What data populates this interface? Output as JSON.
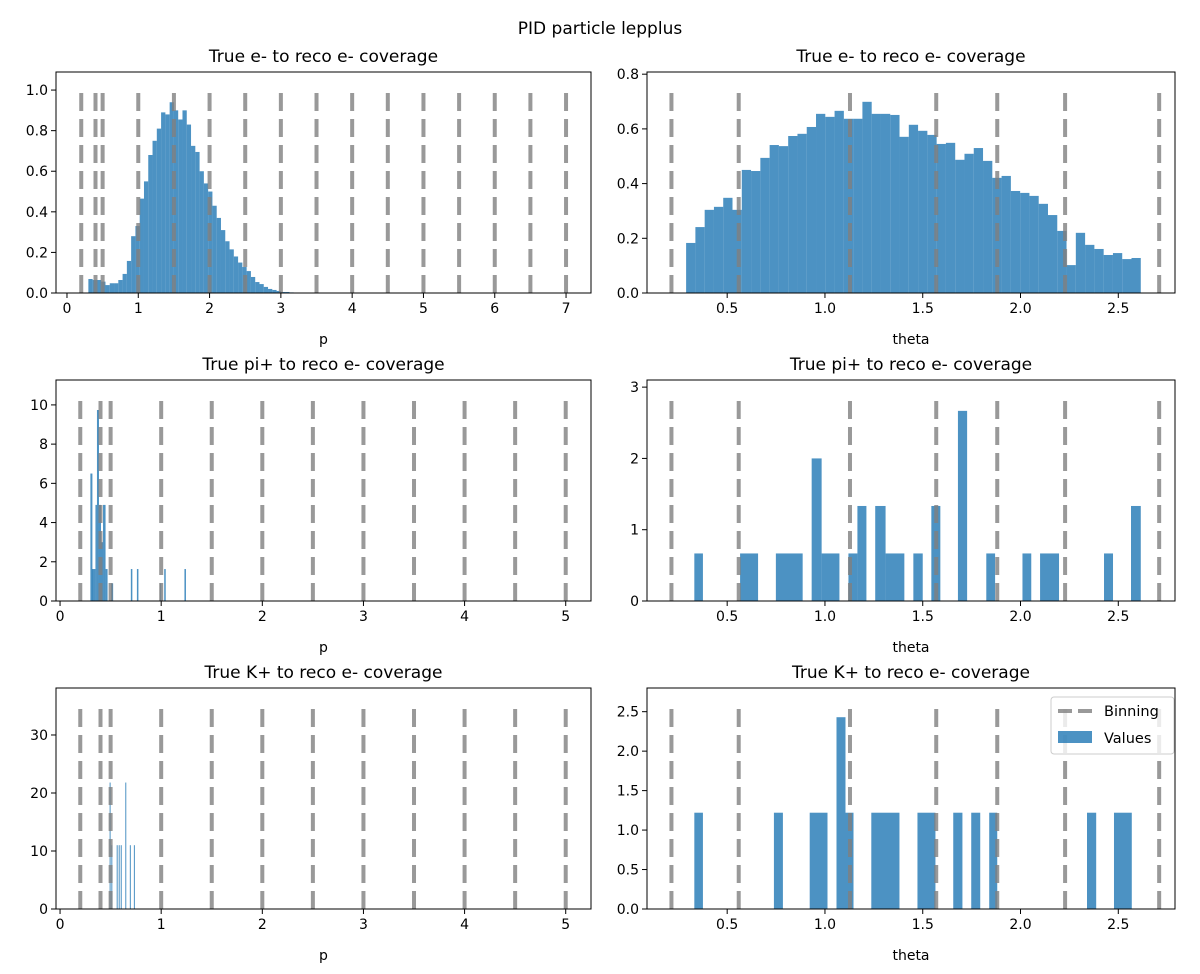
{
  "suptitle": "PID particle lepplus",
  "colors": {
    "values": "#1f77b4",
    "binning": "#7f7f7f"
  },
  "legend": {
    "placement": "upper right",
    "entries": [
      "Binning",
      "Values"
    ]
  },
  "chart_data": [
    {
      "type": "bar",
      "title": "True e- to reco e- coverage",
      "xlabel": "p",
      "ylabel": "",
      "xlim": [
        -0.154,
        7.35
      ],
      "ylim": [
        0,
        1.089
      ],
      "xticks": [
        "0",
        "1",
        "2",
        "3",
        "4",
        "5",
        "6",
        "7"
      ],
      "yticks": [
        "0.0",
        "0.2",
        "0.4",
        "0.6",
        "0.8",
        "1.0"
      ],
      "binning": {
        "edges": [
          0.2,
          0.4,
          0.5,
          1.0,
          1.5,
          2.0,
          2.5,
          3.0,
          3.5,
          4.0,
          4.5,
          5.0,
          5.5,
          6.0,
          6.5,
          7.0
        ],
        "height": 1.0
      },
      "hist": {
        "range": [
          0.3,
          3.3
        ],
        "values": [
          0.069,
          0.064,
          0.064,
          0.056,
          0.039,
          0.048,
          0.048,
          0.064,
          0.094,
          0.158,
          0.28,
          0.33,
          0.465,
          0.55,
          0.68,
          0.75,
          0.81,
          0.89,
          0.88,
          0.94,
          0.9,
          0.855,
          0.9,
          0.83,
          0.725,
          0.695,
          0.6,
          0.54,
          0.5,
          0.43,
          0.37,
          0.31,
          0.255,
          0.215,
          0.18,
          0.15,
          0.128,
          0.108,
          0.079,
          0.054,
          0.044,
          0.03,
          0.02,
          0.015,
          0.01,
          0.005,
          0.005,
          0.003,
          0.002,
          0.002
        ]
      }
    },
    {
      "type": "bar",
      "title": "True e- to reco e- coverage",
      "xlabel": "theta",
      "ylabel": "",
      "xlim": [
        0.09,
        2.79
      ],
      "ylim": [
        0,
        0.808
      ],
      "xticks": [
        "0.5",
        "1.0",
        "1.5",
        "2.0",
        "2.5"
      ],
      "yticks": [
        "0.0",
        "0.2",
        "0.4",
        "0.6",
        "0.8"
      ],
      "binning": {
        "edges": [
          0.215,
          0.559,
          1.128,
          1.569,
          1.881,
          2.228,
          2.709
        ],
        "height": 0.746
      },
      "hist": {
        "range": [
          0.29,
          2.615
        ],
        "values": [
          0.183,
          0.241,
          0.304,
          0.315,
          0.348,
          0.304,
          0.45,
          0.446,
          0.494,
          0.541,
          0.537,
          0.574,
          0.582,
          0.607,
          0.655,
          0.644,
          0.666,
          0.637,
          0.637,
          0.699,
          0.655,
          0.655,
          0.651,
          0.571,
          0.615,
          0.593,
          0.578,
          0.545,
          0.549,
          0.487,
          0.509,
          0.53,
          0.483,
          0.421,
          0.428,
          0.373,
          0.366,
          0.355,
          0.326,
          0.285,
          0.227,
          0.102,
          0.22,
          0.176,
          0.161,
          0.139,
          0.146,
          0.124,
          0.128
        ]
      }
    },
    {
      "type": "bar",
      "title": "True pi+ to reco e- coverage",
      "xlabel": "p",
      "ylabel": "",
      "xlim": [
        -0.04,
        5.25
      ],
      "ylim": [
        0,
        11.27
      ],
      "xticks": [
        "0",
        "1",
        "2",
        "3",
        "4",
        "5"
      ],
      "yticks": [
        "0",
        "2",
        "4",
        "6",
        "8",
        "10"
      ],
      "binning": {
        "edges": [
          0.2,
          0.4,
          0.5,
          1.0,
          1.5,
          2.0,
          2.5,
          3.0,
          3.5,
          4.0,
          4.5,
          5.0
        ],
        "height": 10.4
      },
      "bars": [
        [
          0.3,
          0.32,
          6.5
        ],
        [
          0.315,
          0.35,
          1.63
        ],
        [
          0.35,
          0.365,
          4.9
        ],
        [
          0.365,
          0.385,
          9.74
        ],
        [
          0.385,
          0.405,
          4.9
        ],
        [
          0.405,
          0.425,
          3.0
        ],
        [
          0.425,
          0.45,
          4.9
        ],
        [
          0.45,
          0.47,
          1.63
        ],
        [
          0.505,
          0.525,
          0.9
        ],
        [
          0.7,
          0.715,
          1.63
        ],
        [
          0.76,
          0.775,
          1.63
        ],
        [
          0.99,
          1.0,
          0.9
        ],
        [
          1.03,
          1.045,
          1.63
        ],
        [
          1.23,
          1.245,
          1.63
        ]
      ]
    },
    {
      "type": "bar",
      "title": "True pi+ to reco e- coverage",
      "xlabel": "theta",
      "ylabel": "",
      "xlim": [
        0.09,
        2.79
      ],
      "ylim": [
        0,
        3.1
      ],
      "xticks": [
        "0.5",
        "1.0",
        "1.5",
        "2.0",
        "2.5"
      ],
      "yticks": [
        "0",
        "1",
        "2",
        "3"
      ],
      "binning": {
        "edges": [
          0.215,
          0.559,
          1.128,
          1.569,
          1.881,
          2.228,
          2.709
        ],
        "height": 2.86
      },
      "bars": [
        [
          0.332,
          0.376,
          0.667
        ],
        [
          0.566,
          0.658,
          0.667
        ],
        [
          0.749,
          0.886,
          0.667
        ],
        [
          0.932,
          0.983,
          2.0
        ],
        [
          0.983,
          1.074,
          0.667
        ],
        [
          1.12,
          1.166,
          0.667
        ],
        [
          1.166,
          1.212,
          1.333
        ],
        [
          1.257,
          1.31,
          1.333
        ],
        [
          1.31,
          1.406,
          0.667
        ],
        [
          1.452,
          1.5,
          0.667
        ],
        [
          1.544,
          1.59,
          1.333
        ],
        [
          1.68,
          1.727,
          2.667
        ],
        [
          1.825,
          1.87,
          0.667
        ],
        [
          2.01,
          2.055,
          0.667
        ],
        [
          2.1,
          2.197,
          0.667
        ],
        [
          2.427,
          2.473,
          0.667
        ],
        [
          2.565,
          2.615,
          1.333
        ]
      ]
    },
    {
      "type": "bar",
      "title": "True K+ to reco e- coverage",
      "xlabel": "p",
      "ylabel": "",
      "xlim": [
        -0.04,
        5.25
      ],
      "ylim": [
        0,
        38.1
      ],
      "xticks": [
        "0",
        "1",
        "2",
        "3",
        "4",
        "5"
      ],
      "yticks": [
        "0",
        "10",
        "20",
        "30"
      ],
      "binning": {
        "edges": [
          0.2,
          0.4,
          0.5,
          1.0,
          1.5,
          2.0,
          2.5,
          3.0,
          3.5,
          4.0,
          4.5,
          5.0
        ],
        "height": 35.2
      },
      "bars": [
        [
          0.49,
          0.5,
          21.8
        ],
        [
          0.507,
          0.517,
          11.0
        ],
        [
          0.56,
          0.57,
          11.0
        ],
        [
          0.58,
          0.59,
          11.0
        ],
        [
          0.6,
          0.61,
          11.0
        ],
        [
          0.645,
          0.652,
          21.8
        ],
        [
          0.69,
          0.7,
          11.0
        ],
        [
          0.73,
          0.74,
          11.0
        ]
      ]
    },
    {
      "type": "bar",
      "title": "True K+ to reco e- coverage",
      "xlabel": "theta",
      "ylabel": "",
      "xlim": [
        0.09,
        2.79
      ],
      "ylim": [
        0,
        2.8
      ],
      "xticks": [
        "0.5",
        "1.0",
        "1.5",
        "2.0",
        "2.5"
      ],
      "yticks": [
        "0.0",
        "0.5",
        "1.0",
        "1.5",
        "2.0",
        "2.5"
      ],
      "binning": {
        "edges": [
          0.215,
          0.559,
          1.128,
          1.569,
          1.881,
          2.228,
          2.709
        ],
        "height": 2.59
      },
      "legend": true,
      "bars": [
        [
          0.332,
          0.376,
          1.22
        ],
        [
          0.739,
          0.785,
          1.22
        ],
        [
          0.922,
          1.013,
          1.22
        ],
        [
          1.059,
          1.105,
          2.43
        ],
        [
          1.105,
          1.146,
          1.22
        ],
        [
          1.237,
          1.381,
          1.22
        ],
        [
          1.473,
          1.565,
          1.22
        ],
        [
          1.656,
          1.703,
          1.22
        ],
        [
          1.748,
          1.794,
          1.22
        ],
        [
          1.84,
          1.881,
          1.22
        ],
        [
          2.34,
          2.387,
          1.22
        ],
        [
          2.478,
          2.569,
          1.22
        ]
      ]
    }
  ]
}
